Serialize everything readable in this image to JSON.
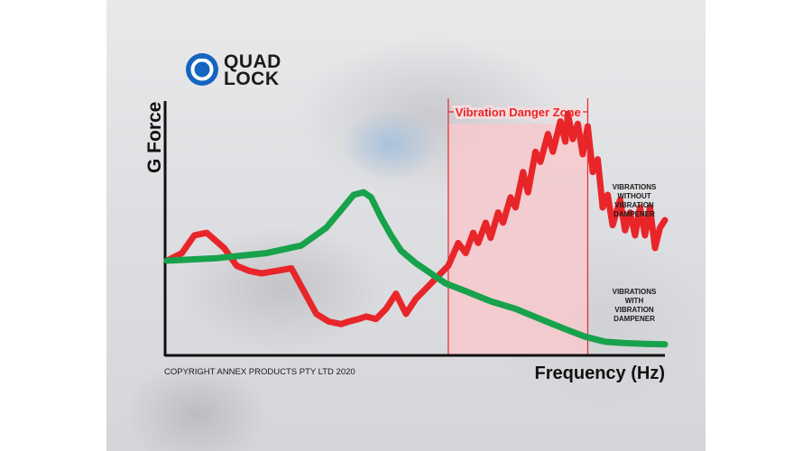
{
  "logo": {
    "line1": "QUAD",
    "line2": "LOCK",
    "icon": "quad-lock-ring-icon"
  },
  "copyright": "COPYRIGHT ANNEX PRODUCTS PTY LTD 2020",
  "colors": {
    "axis": "#111111",
    "without_dampener": "#e8262a",
    "with_dampener": "#17a24b",
    "danger_zone_fill": "#f6c9cc",
    "danger_zone_label": "#e8262a",
    "logo_blue": "#1565c0"
  },
  "chart_data": {
    "type": "line",
    "xlabel": "Frequency (Hz)",
    "ylabel": "G Force",
    "ticks": "none",
    "xlim": [
      0,
      100
    ],
    "ylim": [
      0,
      100
    ],
    "grid": false,
    "legend": "inline labels at right end of each curve",
    "zone": {
      "label": "Vibration Danger Zone",
      "x_start": 56.5,
      "x_end": 84.5
    },
    "series": [
      {
        "name": "VIBRATIONS WITHOUT VIBRATION DAMPENER",
        "label_lines": [
          "VIBRATIONS",
          "WITHOUT",
          "VIBRATION",
          "DAMPENER"
        ],
        "color": "#e8262a",
        "x": [
          0,
          3,
          5.5,
          8,
          11.5,
          14,
          16.5,
          19,
          22,
          25,
          27.5,
          30,
          32.5,
          35,
          36.5,
          38.5,
          40,
          42,
          44,
          46,
          48,
          50,
          51.5,
          53,
          55,
          56.5,
          58.5,
          60,
          61.5,
          62.5,
          64,
          65,
          66.5,
          67.5,
          69,
          70,
          71.5,
          72.5,
          74,
          75,
          76.5,
          77.5,
          79,
          80,
          80.5,
          81.5,
          82.5,
          83.5,
          84.5,
          85.5,
          86.5,
          87.5,
          88.5,
          89.5,
          91,
          92,
          93,
          94,
          95,
          96,
          97,
          98,
          99,
          100
        ],
        "y": [
          37,
          40,
          47,
          48,
          42,
          35,
          33,
          32,
          33,
          34,
          25,
          16,
          13,
          12,
          13,
          14,
          15,
          14,
          18,
          24,
          16,
          22,
          25,
          28,
          32,
          35,
          44,
          40,
          48,
          44,
          52,
          46,
          56,
          52,
          62,
          58,
          72,
          64,
          80,
          76,
          87,
          80,
          92,
          84,
          95,
          85,
          91,
          79,
          90,
          72,
          77,
          58,
          63,
          51,
          61,
          49,
          56,
          47,
          58,
          47,
          58,
          42,
          50,
          53
        ]
      },
      {
        "name": "VIBRATIONS WITH VIBRATION DAMPENER",
        "label_lines": [
          "VIBRATIONS",
          "WITH",
          "VIBRATION",
          "DAMPENER"
        ],
        "color": "#17a24b",
        "x": [
          0,
          10,
          20,
          27,
          32,
          35,
          37.5,
          39.5,
          41,
          43,
          45,
          47,
          50,
          53,
          56,
          60,
          65,
          70,
          75,
          80,
          84,
          88,
          92,
          96,
          100
        ],
        "y": [
          37,
          38,
          40,
          43,
          50,
          57,
          63,
          64,
          62,
          54,
          47,
          41,
          36,
          32,
          28,
          25,
          21,
          18,
          14,
          10,
          7,
          5,
          4.5,
          4.2,
          4
        ]
      }
    ]
  }
}
